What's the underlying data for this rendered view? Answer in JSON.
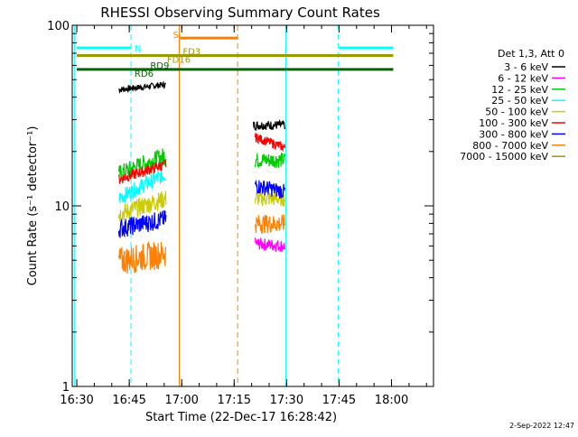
{
  "chart_data": {
    "type": "line",
    "title": "RHESSI Observing Summary Count Rates",
    "xlabel": "Start Time (22-Dec-17 16:28:42)",
    "ylabel": "Count Rate (s⁻¹ detector⁻¹)",
    "yscale": "log",
    "ylim": [
      1,
      100
    ],
    "xlim": [
      "16:28:42",
      "18:12:00"
    ],
    "x_ticks": [
      "16:30",
      "16:45",
      "17:00",
      "17:15",
      "17:30",
      "17:45",
      "18:00"
    ],
    "x_tick_minutes": [
      990,
      1005,
      1020,
      1035,
      1050,
      1065,
      1080
    ],
    "y_ticks": [
      "1",
      "10",
      "100"
    ],
    "y_tick_values": [
      1,
      10,
      100
    ],
    "legend_title": "Det 1,3, Att 0",
    "legend_position": "right",
    "series": [
      {
        "name": "3 - 6 keV",
        "color": "#000000",
        "segments": [
          {
            "t0": 1002.0,
            "t1": 1015.5,
            "y0": 44,
            "y1": 47,
            "jit": 0.04
          },
          {
            "t0": 1040.5,
            "t1": 1049.5,
            "y0": 28,
            "y1": 28,
            "jit": 0.06
          }
        ]
      },
      {
        "name": "6 - 12 keV",
        "color": "#ff00ff",
        "segments": [
          {
            "t0": 1041.0,
            "t1": 1049.5,
            "y0": 6.2,
            "y1": 6.0,
            "jit": 0.08
          }
        ]
      },
      {
        "name": "12 - 25 keV",
        "color": "#00cc00",
        "segments": [
          {
            "t0": 1002.0,
            "t1": 1015.5,
            "y0": 15,
            "y1": 19,
            "jit": 0.12
          },
          {
            "t0": 1041.0,
            "t1": 1049.5,
            "y0": 18,
            "y1": 18,
            "jit": 0.1
          }
        ]
      },
      {
        "name": "25 - 50 keV",
        "color": "#00ffff",
        "segments": [
          {
            "t0": 1002.0,
            "t1": 1015.5,
            "y0": 11,
            "y1": 15,
            "jit": 0.1
          }
        ]
      },
      {
        "name": "50 - 100 keV",
        "color": "#cccc00",
        "segments": [
          {
            "t0": 1002.0,
            "t1": 1015.5,
            "y0": 9,
            "y1": 11,
            "jit": 0.12
          },
          {
            "t0": 1041.0,
            "t1": 1049.5,
            "y0": 11,
            "y1": 11,
            "jit": 0.1
          }
        ]
      },
      {
        "name": "100 - 300 keV",
        "color": "#ff0000",
        "segments": [
          {
            "t0": 1002.0,
            "t1": 1015.5,
            "y0": 14,
            "y1": 17,
            "jit": 0.07
          },
          {
            "t0": 1041.0,
            "t1": 1049.5,
            "y0": 24,
            "y1": 21,
            "jit": 0.06
          }
        ]
      },
      {
        "name": "300 - 800 keV",
        "color": "#0000ff",
        "segments": [
          {
            "t0": 1002.0,
            "t1": 1015.5,
            "y0": 7.5,
            "y1": 8.5,
            "jit": 0.12
          },
          {
            "t0": 1041.0,
            "t1": 1049.5,
            "y0": 13,
            "y1": 12,
            "jit": 0.1
          }
        ]
      },
      {
        "name": "800 - 7000 keV",
        "color": "#ff8000",
        "segments": [
          {
            "t0": 1002.0,
            "t1": 1015.5,
            "y0": 5,
            "y1": 5.5,
            "jit": 0.18
          },
          {
            "t0": 1041.0,
            "t1": 1049.5,
            "y0": 8,
            "y1": 8,
            "jit": 0.12
          }
        ]
      },
      {
        "name": "7000 - 15000 keV",
        "color": "#999900",
        "segments": []
      }
    ],
    "flag_lines": [
      {
        "label": "N",
        "color": "#00ffff",
        "y": 75,
        "segments": [
          [
            990,
            1005.5
          ],
          [
            1065,
            1080.5
          ]
        ]
      },
      {
        "label": "S",
        "color": "#ff8000",
        "y": 85,
        "segments": [
          [
            1019.5,
            1036
          ]
        ]
      },
      {
        "label": "FD3",
        "color": "#999900",
        "y": 68,
        "segments": [
          [
            990,
            1080.5
          ]
        ]
      },
      {
        "label": "FD16",
        "color": "#999900",
        "y": 68,
        "segments": []
      },
      {
        "label": "RD9",
        "color": "#006400",
        "y": 57,
        "segments": [
          [
            990,
            1080.5
          ]
        ]
      },
      {
        "label": "RD6",
        "color": "#006400",
        "y": 57,
        "segments": []
      }
    ],
    "vlines": [
      {
        "t": 989.3,
        "color": "#00ffff",
        "style": "solid"
      },
      {
        "t": 1005.5,
        "color": "#00ffff",
        "style": "dashed"
      },
      {
        "t": 1019.3,
        "color": "#ff8000",
        "style": "solid"
      },
      {
        "t": 1036.0,
        "color": "#ff8000",
        "style": "dashed"
      },
      {
        "t": 1049.8,
        "color": "#00ffff",
        "style": "solid"
      },
      {
        "t": 1064.8,
        "color": "#00ffff",
        "style": "dashed"
      }
    ]
  },
  "footer_date": "2-Sep-2022 12:47"
}
